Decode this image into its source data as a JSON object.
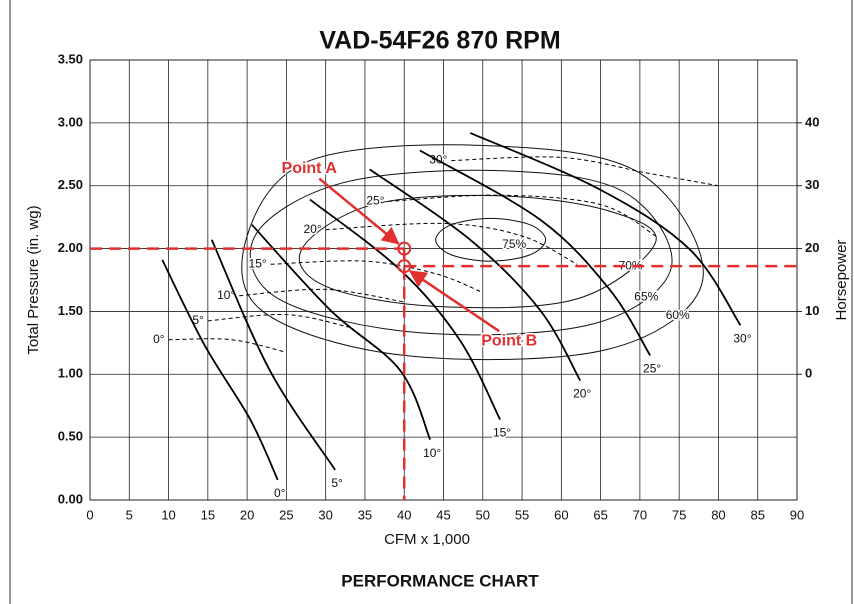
{
  "chart_data": {
    "type": "line",
    "title": "VAD-54F26   870 RPM",
    "x_label": "CFM x 1,000",
    "y_label": "Total Pressure (in. wg)",
    "y2_label": "Horsepower",
    "caption": "PERFORMANCE CHART",
    "xlim": [
      0,
      90
    ],
    "xticks": [
      0,
      5,
      10,
      15,
      20,
      25,
      30,
      35,
      40,
      45,
      50,
      55,
      60,
      65,
      70,
      75,
      80,
      85,
      90
    ],
    "ylim": [
      0,
      3.5
    ],
    "yticks": [
      {
        "value": 0,
        "label": "0.00"
      },
      {
        "value": 0.5,
        "label": "0.50"
      },
      {
        "value": 1,
        "label": "1.00"
      },
      {
        "value": 1.5,
        "label": "1.50"
      },
      {
        "value": 2,
        "label": "2.00"
      },
      {
        "value": 2.5,
        "label": "2.50"
      },
      {
        "value": 3,
        "label": "3.00"
      },
      {
        "value": 3.5,
        "label": "3.50"
      }
    ],
    "y2lim": [
      -20,
      50
    ],
    "y2ticks": [
      0,
      10,
      20,
      30,
      40
    ],
    "grid": true,
    "series": [
      {
        "name": "0°",
        "color": "#000000",
        "x": [
          9.2,
          14.6,
          20.4,
          23.9
        ],
        "values": [
          1.91,
          1.23,
          0.64,
          0.16
        ]
      },
      {
        "name": "5°",
        "color": "#000000",
        "x": [
          15.5,
          22.9,
          31.2
        ],
        "values": [
          2.07,
          1.03,
          0.24
        ]
      },
      {
        "name": "10°",
        "color": "#000000",
        "x": [
          20.6,
          30.6,
          39.5,
          43.3
        ],
        "values": [
          2.19,
          1.51,
          1.03,
          0.48
        ]
      },
      {
        "name": "15°",
        "color": "#000000",
        "x": [
          28,
          39.5,
          47.1,
          52.2
        ],
        "values": [
          2.39,
          1.83,
          1.27,
          0.64
        ]
      },
      {
        "name": "20°",
        "color": "#000000",
        "x": [
          35.6,
          48.4,
          57.3,
          62.4
        ],
        "values": [
          2.63,
          2.07,
          1.51,
          0.95
        ]
      },
      {
        "name": "25°",
        "color": "#000000",
        "x": [
          42,
          57.3,
          66.2,
          71.3
        ],
        "values": [
          2.78,
          2.23,
          1.67,
          1.15
        ]
      },
      {
        "name": "30°",
        "color": "#000000",
        "x": [
          48.4,
          64.9,
          76.4,
          82.8
        ],
        "values": [
          2.92,
          2.47,
          1.99,
          1.39
        ]
      }
    ],
    "hp_series": [
      {
        "name": "0°",
        "axis": "y2",
        "color": "#000000",
        "x": [
          10,
          18,
          25
        ],
        "values": [
          5.5,
          5.5,
          3.5
        ]
      },
      {
        "name": "5°",
        "axis": "y2",
        "color": "#000000",
        "x": [
          15,
          25,
          33
        ],
        "values": [
          8.5,
          9.5,
          7.5
        ]
      },
      {
        "name": "10°",
        "axis": "y2",
        "color": "#000000",
        "x": [
          19,
          30,
          40
        ],
        "values": [
          12.5,
          13.5,
          11.5
        ]
      },
      {
        "name": "15°",
        "axis": "y2",
        "color": "#000000",
        "x": [
          23,
          35,
          44,
          50
        ],
        "values": [
          17.5,
          18,
          16,
          13
        ]
      },
      {
        "name": "20°",
        "axis": "y2",
        "color": "#000000",
        "x": [
          30,
          45,
          55,
          62
        ],
        "values": [
          23,
          24,
          22,
          17.5
        ]
      },
      {
        "name": "25°",
        "axis": "y2",
        "color": "#000000",
        "x": [
          38,
          52,
          65,
          72
        ],
        "values": [
          27.5,
          28.5,
          27,
          22
        ]
      },
      {
        "name": "30°",
        "axis": "y2",
        "color": "#000000",
        "x": [
          46,
          60,
          71,
          80
        ],
        "values": [
          34,
          34.5,
          32,
          30
        ]
      }
    ],
    "efficiency": [
      {
        "name": "75%",
        "x": [
          58,
          56,
          51,
          46,
          44,
          46,
          51,
          56
        ],
        "values": [
          2.07,
          2.19,
          2.24,
          2.19,
          2.07,
          1.95,
          1.9,
          1.95
        ]
      },
      {
        "name": "70%",
        "x": [
          72,
          66,
          52,
          36,
          27,
          30,
          44,
          62
        ],
        "values": [
          2.05,
          2.3,
          2.42,
          2.35,
          2.0,
          1.7,
          1.54,
          1.6
        ]
      },
      {
        "name": "65%",
        "x": [
          74,
          68,
          52,
          32,
          21,
          24,
          42,
          64
        ],
        "values": [
          1.85,
          2.45,
          2.62,
          2.52,
          2.1,
          1.6,
          1.33,
          1.4
        ]
      },
      {
        "name": "60%",
        "x": [
          78,
          70,
          50,
          28,
          20,
          22,
          40,
          66
        ],
        "values": [
          1.75,
          2.6,
          2.82,
          2.7,
          2.1,
          1.5,
          1.15,
          1.2
        ]
      }
    ],
    "points": [
      {
        "name": "Point A",
        "x": 40,
        "y": 2.0
      },
      {
        "name": "Point B",
        "x": 40,
        "y": 1.86
      }
    ]
  }
}
